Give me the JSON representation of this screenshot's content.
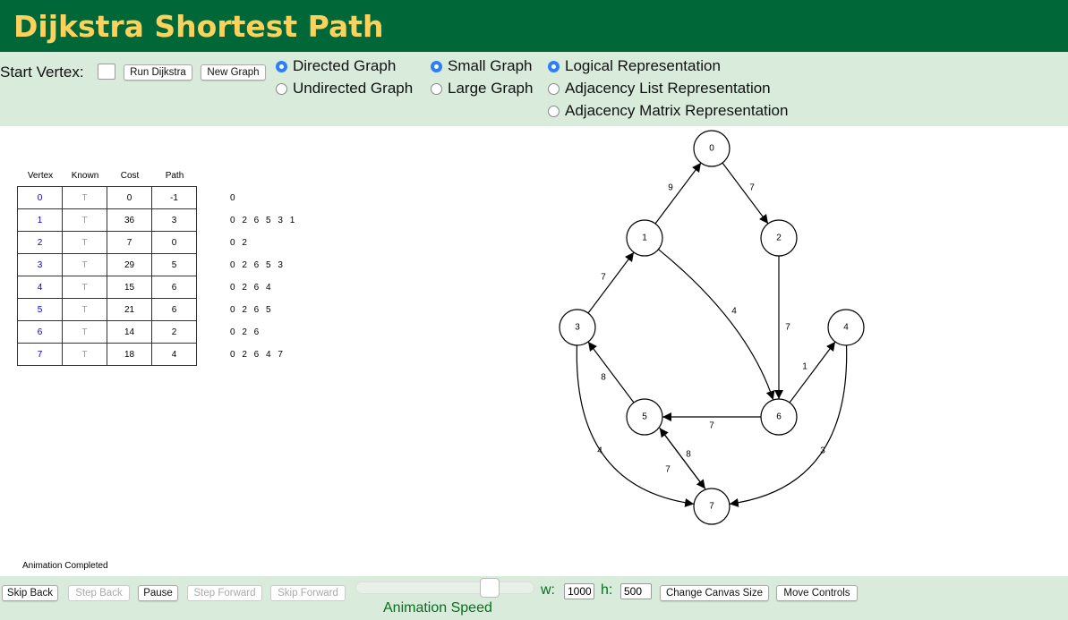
{
  "header": {
    "title": "Dijkstra Shortest Path"
  },
  "controls": {
    "start_vertex_label": "Start Vertex:",
    "start_vertex_value": "",
    "run_button": "Run Dijkstra",
    "new_graph_button": "New Graph",
    "graph_direction": [
      {
        "label": "Directed Graph",
        "selected": true
      },
      {
        "label": "Undirected Graph",
        "selected": false
      }
    ],
    "graph_size": [
      {
        "label": "Small Graph",
        "selected": true
      },
      {
        "label": "Large Graph",
        "selected": false
      }
    ],
    "representation": [
      {
        "label": "Logical Representation",
        "selected": true
      },
      {
        "label": "Adjacency List Representation",
        "selected": false
      },
      {
        "label": "Adjacency Matrix Representation",
        "selected": false
      }
    ]
  },
  "table": {
    "headers": [
      "Vertex",
      "Known",
      "Cost",
      "Path"
    ],
    "rows": [
      {
        "vertex": "0",
        "known": "T",
        "cost": "0",
        "path": "-1",
        "full_path": "0"
      },
      {
        "vertex": "1",
        "known": "T",
        "cost": "36",
        "path": "3",
        "full_path": "0 2 6 5 3 1"
      },
      {
        "vertex": "2",
        "known": "T",
        "cost": "7",
        "path": "0",
        "full_path": "0 2"
      },
      {
        "vertex": "3",
        "known": "T",
        "cost": "29",
        "path": "5",
        "full_path": "0 2 6 5 3"
      },
      {
        "vertex": "4",
        "known": "T",
        "cost": "15",
        "path": "6",
        "full_path": "0 2 6 4"
      },
      {
        "vertex": "5",
        "known": "T",
        "cost": "21",
        "path": "6",
        "full_path": "0 2 6 5"
      },
      {
        "vertex": "6",
        "known": "T",
        "cost": "14",
        "path": "2",
        "full_path": "0 2 6"
      },
      {
        "vertex": "7",
        "known": "T",
        "cost": "18",
        "path": "4",
        "full_path": "0 2 6 4 7"
      }
    ]
  },
  "graph": {
    "vertices": [
      "0",
      "1",
      "2",
      "3",
      "4",
      "5",
      "6",
      "7"
    ],
    "edges": [
      {
        "from": "1",
        "to": "0",
        "weight": "9"
      },
      {
        "from": "0",
        "to": "2",
        "weight": "7"
      },
      {
        "from": "3",
        "to": "1",
        "weight": "7"
      },
      {
        "from": "1",
        "to": "6",
        "weight": "4"
      },
      {
        "from": "2",
        "to": "6",
        "weight": "7"
      },
      {
        "from": "6",
        "to": "4",
        "weight": "1"
      },
      {
        "from": "5",
        "to": "3",
        "weight": "8"
      },
      {
        "from": "6",
        "to": "5",
        "weight": "7"
      },
      {
        "from": "3",
        "to": "7",
        "weight": "4"
      },
      {
        "from": "7",
        "to": "5",
        "weight": "8"
      },
      {
        "from": "5",
        "to": "7",
        "weight": "7"
      },
      {
        "from": "4",
        "to": "7",
        "weight": "3"
      }
    ]
  },
  "status": "Animation Completed",
  "footer": {
    "skip_back": "Skip Back",
    "step_back": "Step Back",
    "pause": "Pause",
    "step_forward": "Step Forward",
    "skip_forward": "Skip Forward",
    "animation_speed_label": "Animation Speed",
    "w_label": "w:",
    "w_value": "1000",
    "h_label": "h:",
    "h_value": "500",
    "change_canvas_size": "Change Canvas Size",
    "move_controls": "Move Controls"
  }
}
